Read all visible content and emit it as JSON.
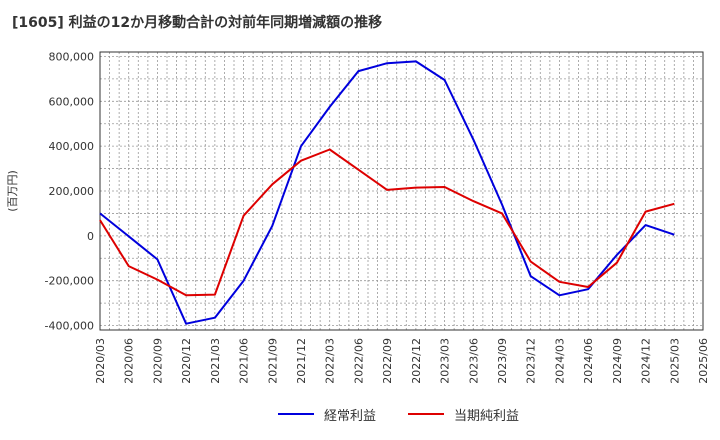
{
  "title": "[1605]  利益の12か月移動合計の対前年同期増減額の推移",
  "chart_data": {
    "type": "line",
    "title": "[1605]  利益の12か月移動合計の対前年同期増減額の推移",
    "xlabel": "",
    "ylabel": "(百万円)",
    "ylim": [
      -420000,
      820000
    ],
    "yticks": [
      800000,
      600000,
      400000,
      200000,
      0,
      -200000,
      -400000
    ],
    "ytick_labels": [
      "800,000",
      "600,000",
      "400,000",
      "200,000",
      "0",
      "-200,000",
      "-400,000"
    ],
    "categories": [
      "2020/03",
      "2020/06",
      "2020/09",
      "2020/12",
      "2021/03",
      "2021/06",
      "2021/09",
      "2021/12",
      "2022/03",
      "2022/06",
      "2022/09",
      "2022/12",
      "2023/03",
      "2023/06",
      "2023/09",
      "2023/12",
      "2024/03",
      "2024/06",
      "2024/09",
      "2024/12",
      "2025/03",
      "2025/06"
    ],
    "series": [
      {
        "name": "経常利益",
        "color": "#0000dd",
        "values": [
          100000,
          -2000,
          -105000,
          -392000,
          -365000,
          -200000,
          45000,
          400000,
          575000,
          735000,
          770000,
          778000,
          695000,
          430000,
          140000,
          -180000,
          -265000,
          -238000,
          -85000,
          48000,
          5000,
          null
        ]
      },
      {
        "name": "当期純利益",
        "color": "#dd0000",
        "values": [
          70000,
          -135000,
          -195000,
          -265000,
          -262000,
          90000,
          230000,
          335000,
          385000,
          295000,
          205000,
          215000,
          218000,
          155000,
          100000,
          -115000,
          -205000,
          -228000,
          -120000,
          108000,
          143000,
          null
        ]
      }
    ],
    "grid": true,
    "legend_position": "bottom-center"
  }
}
